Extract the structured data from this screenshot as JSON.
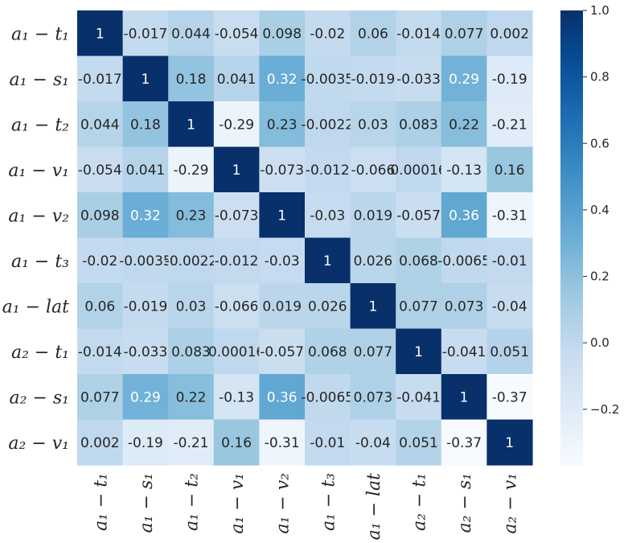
{
  "chart_data": {
    "type": "heatmap",
    "title": "",
    "colormap": "Blues",
    "vmin": -0.37,
    "vmax": 1.0,
    "row_labels": [
      "a₁ − t₁",
      "a₁ − s₁",
      "a₁ − t₂",
      "a₁ − v₁",
      "a₁ − v₂",
      "a₁ − t₃",
      "a₁ − lat",
      "a₂ − t₁",
      "a₂ − s₁",
      "a₂ − v₁"
    ],
    "col_labels": [
      "a₁ − t₁",
      "a₁ − s₁",
      "a₁ − t₂",
      "a₁ − v₁",
      "a₁ − v₂",
      "a₁ − t₃",
      "a₁ − lat",
      "a₂ − t₁",
      "a₂ − s₁",
      "a₂ − v₁"
    ],
    "values": [
      [
        1,
        -0.017,
        0.044,
        -0.054,
        0.098,
        -0.02,
        0.06,
        -0.014,
        0.077,
        0.002
      ],
      [
        -0.017,
        1,
        0.18,
        0.041,
        0.32,
        -0.0035,
        -0.019,
        -0.033,
        0.29,
        -0.19
      ],
      [
        0.044,
        0.18,
        1,
        -0.29,
        0.23,
        -0.0022,
        0.03,
        0.083,
        0.22,
        -0.21
      ],
      [
        -0.054,
        0.041,
        -0.29,
        1,
        -0.073,
        -0.012,
        -0.066,
        0.00016,
        -0.13,
        0.16
      ],
      [
        0.098,
        0.32,
        0.23,
        -0.073,
        1,
        -0.03,
        0.019,
        -0.057,
        0.36,
        -0.31
      ],
      [
        -0.02,
        -0.0035,
        -0.0022,
        -0.012,
        -0.03,
        1,
        0.026,
        0.068,
        -0.0065,
        -0.01
      ],
      [
        0.06,
        -0.019,
        0.03,
        -0.066,
        0.019,
        0.026,
        1,
        0.077,
        0.073,
        -0.04
      ],
      [
        -0.014,
        -0.033,
        0.083,
        0.00016,
        -0.057,
        0.068,
        0.077,
        1,
        -0.041,
        0.051
      ],
      [
        0.077,
        0.29,
        0.22,
        -0.13,
        0.36,
        -0.0065,
        0.073,
        -0.041,
        1,
        -0.37
      ],
      [
        0.002,
        -0.19,
        -0.21,
        0.16,
        -0.31,
        -0.01,
        -0.04,
        0.051,
        -0.37,
        1
      ]
    ],
    "colorbar_ticks": [
      "1.0",
      "0.8",
      "0.6",
      "0.4",
      "0.2",
      "0.0",
      "−0.2"
    ],
    "colorbar_tick_values": [
      1.0,
      0.8,
      0.6,
      0.4,
      0.2,
      0.0,
      -0.2
    ]
  }
}
